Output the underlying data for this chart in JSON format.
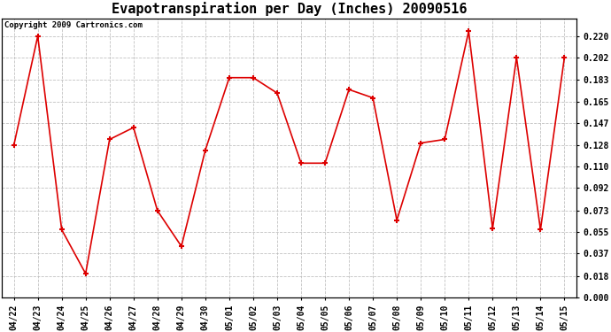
{
  "title": "Evapotranspiration per Day (Inches) 20090516",
  "copyright": "Copyright 2009 Cartronics.com",
  "x_labels": [
    "04/22",
    "04/23",
    "04/24",
    "04/25",
    "04/26",
    "04/27",
    "04/28",
    "04/29",
    "04/30",
    "05/01",
    "05/02",
    "05/03",
    "05/04",
    "05/05",
    "05/06",
    "05/07",
    "05/08",
    "05/09",
    "05/10",
    "05/11",
    "05/12",
    "05/13",
    "05/14",
    "05/15"
  ],
  "y_values": [
    0.128,
    0.22,
    0.057,
    0.02,
    0.133,
    0.143,
    0.073,
    0.043,
    0.124,
    0.185,
    0.185,
    0.172,
    0.113,
    0.113,
    0.175,
    0.168,
    0.065,
    0.13,
    0.133,
    0.224,
    0.058,
    0.202,
    0.057,
    0.202
  ],
  "line_color": "#dd0000",
  "marker": "+",
  "marker_size": 5,
  "marker_lw": 1.5,
  "bg_color": "#ffffff",
  "grid_color": "#bbbbbb",
  "yticks": [
    0.0,
    0.018,
    0.037,
    0.055,
    0.073,
    0.092,
    0.11,
    0.128,
    0.147,
    0.165,
    0.183,
    0.202,
    0.22
  ],
  "ylim": [
    0.0,
    0.235
  ],
  "title_fontsize": 11,
  "tick_fontsize": 7,
  "copyright_fontsize": 6.5
}
